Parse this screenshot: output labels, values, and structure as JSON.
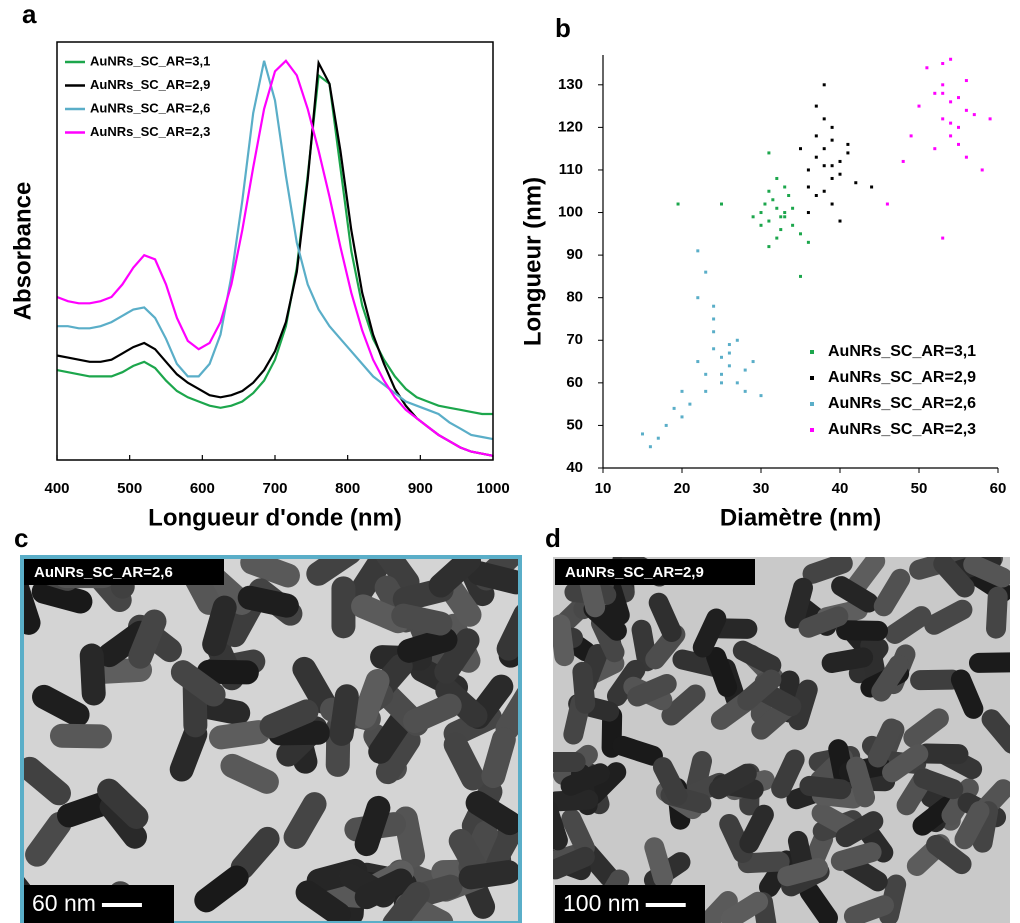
{
  "chart_data": [
    {
      "type": "line",
      "panel_label": "a",
      "x_label": "Longueur d'onde (nm)",
      "y_label": "Absorbance",
      "xlim": [
        400,
        1000
      ],
      "xticks": [
        400,
        500,
        600,
        700,
        800,
        900,
        1000
      ],
      "ylim": [
        0,
        1
      ],
      "legend": "upper left",
      "x": [
        400,
        415,
        430,
        445,
        460,
        475,
        490,
        505,
        520,
        535,
        550,
        565,
        580,
        595,
        610,
        625,
        640,
        655,
        670,
        685,
        700,
        715,
        730,
        745,
        760,
        775,
        790,
        805,
        820,
        835,
        850,
        865,
        880,
        895,
        910,
        925,
        940,
        955,
        970,
        985,
        1000
      ],
      "series": [
        {
          "name": "AuNRs_SC_AR=3,1",
          "color": "#1ca64c",
          "values": [
            0.215,
            0.21,
            0.205,
            0.2,
            0.2,
            0.2,
            0.21,
            0.225,
            0.235,
            0.22,
            0.19,
            0.165,
            0.15,
            0.14,
            0.13,
            0.125,
            0.13,
            0.14,
            0.16,
            0.19,
            0.24,
            0.32,
            0.46,
            0.68,
            0.92,
            0.9,
            0.7,
            0.5,
            0.37,
            0.29,
            0.24,
            0.2,
            0.17,
            0.15,
            0.14,
            0.13,
            0.125,
            0.12,
            0.115,
            0.11,
            0.11
          ]
        },
        {
          "name": "AuNRs_SC_AR=2,9",
          "color": "#000000",
          "values": [
            0.25,
            0.245,
            0.24,
            0.235,
            0.235,
            0.24,
            0.255,
            0.27,
            0.28,
            0.265,
            0.235,
            0.205,
            0.185,
            0.17,
            0.155,
            0.15,
            0.155,
            0.165,
            0.185,
            0.215,
            0.26,
            0.33,
            0.45,
            0.67,
            0.95,
            0.9,
            0.74,
            0.55,
            0.4,
            0.3,
            0.23,
            0.17,
            0.13,
            0.1,
            0.08,
            0.06,
            0.045,
            0.03,
            0.02,
            0.015,
            0.01
          ]
        },
        {
          "name": "AuNRs_SC_AR=2,6",
          "color": "#5aaec8",
          "values": [
            0.32,
            0.32,
            0.315,
            0.315,
            0.32,
            0.33,
            0.345,
            0.36,
            0.365,
            0.34,
            0.29,
            0.23,
            0.2,
            0.2,
            0.23,
            0.3,
            0.44,
            0.62,
            0.83,
            0.955,
            0.86,
            0.68,
            0.52,
            0.42,
            0.36,
            0.32,
            0.29,
            0.26,
            0.23,
            0.2,
            0.18,
            0.16,
            0.14,
            0.13,
            0.12,
            0.11,
            0.09,
            0.075,
            0.06,
            0.055,
            0.05
          ]
        },
        {
          "name": "AuNRs_SC_AR=2,3",
          "color": "#ff00ff",
          "values": [
            0.39,
            0.38,
            0.375,
            0.375,
            0.38,
            0.39,
            0.42,
            0.46,
            0.49,
            0.48,
            0.42,
            0.34,
            0.285,
            0.265,
            0.28,
            0.33,
            0.42,
            0.55,
            0.7,
            0.84,
            0.93,
            0.955,
            0.92,
            0.84,
            0.74,
            0.63,
            0.51,
            0.4,
            0.31,
            0.24,
            0.19,
            0.15,
            0.12,
            0.1,
            0.08,
            0.06,
            0.045,
            0.03,
            0.02,
            0.015,
            0.01
          ]
        }
      ]
    },
    {
      "type": "scatter",
      "panel_label": "b",
      "x_label": "Diamètre (nm)",
      "y_label": "Longueur (nm)",
      "xlim": [
        10,
        60
      ],
      "xticks": [
        10,
        20,
        30,
        40,
        50,
        60
      ],
      "ylim": [
        40,
        137
      ],
      "yticks": [
        40,
        50,
        60,
        70,
        80,
        90,
        100,
        110,
        120,
        130
      ],
      "legend": "lower right",
      "series": [
        {
          "name": "AuNRs_SC_AR=3,1",
          "color": "#1ca64c",
          "x": [
            30,
            31,
            32,
            33,
            34,
            31.5,
            32.5,
            30.5,
            33.5,
            32,
            31,
            33,
            32,
            30,
            34,
            29,
            35,
            31,
            32.5,
            33,
            19.5,
            25,
            36,
            35,
            31
          ],
          "values": [
            100,
            98,
            101,
            99,
            97,
            103,
            96,
            102,
            104,
            94,
            105,
            100,
            108,
            97,
            101,
            99,
            95,
            92,
            99,
            106,
            102,
            102,
            93,
            85,
            114
          ]
        },
        {
          "name": "AuNRs_SC_AR=2,9",
          "color": "#000000",
          "x": [
            36,
            37,
            38,
            39,
            40,
            38,
            37,
            39,
            41,
            36,
            38,
            40,
            37,
            39,
            38,
            42,
            35,
            39,
            40,
            38,
            44,
            36,
            41,
            37,
            39
          ],
          "values": [
            110,
            113,
            115,
            108,
            112,
            105,
            118,
            120,
            114,
            106,
            111,
            109,
            125,
            117,
            130,
            107,
            115,
            102,
            98,
            122,
            106,
            100,
            116,
            104,
            111
          ]
        },
        {
          "name": "AuNRs_SC_AR=2,6",
          "color": "#5aaec8",
          "x": [
            22,
            23,
            24,
            25,
            26,
            27,
            25,
            24,
            23,
            26,
            28,
            21,
            20,
            19,
            18,
            17,
            16,
            22,
            24,
            27,
            29,
            23,
            25,
            20,
            26,
            22,
            24,
            28,
            30,
            15
          ],
          "values": [
            65,
            62,
            68,
            66,
            64,
            70,
            60,
            72,
            58,
            67,
            63,
            55,
            58,
            54,
            50,
            47,
            45,
            80,
            75,
            60,
            65,
            86,
            62,
            52,
            69,
            91,
            78,
            58,
            57,
            48
          ]
        },
        {
          "name": "AuNRs_SC_AR=2,3",
          "color": "#ff00ff",
          "x": [
            50,
            52,
            53,
            54,
            55,
            56,
            53,
            54,
            52,
            55,
            57,
            58,
            51,
            53,
            55,
            54,
            49,
            56,
            53,
            48,
            46,
            53,
            54,
            56,
            59
          ],
          "values": [
            125,
            128,
            122,
            126,
            120,
            124,
            130,
            118,
            115,
            127,
            123,
            110,
            134,
            135,
            116,
            121,
            118,
            113,
            128,
            112,
            102,
            94,
            136,
            131,
            122
          ]
        }
      ]
    }
  ],
  "images": [
    {
      "panel_label": "c",
      "label": "AuNRs_SC_AR=2,6",
      "scale_bar": "60 nm",
      "border_color": "#5aaec8"
    },
    {
      "panel_label": "d",
      "label": "AuNRs_SC_AR=2,9",
      "scale_bar": "100 nm"
    }
  ]
}
